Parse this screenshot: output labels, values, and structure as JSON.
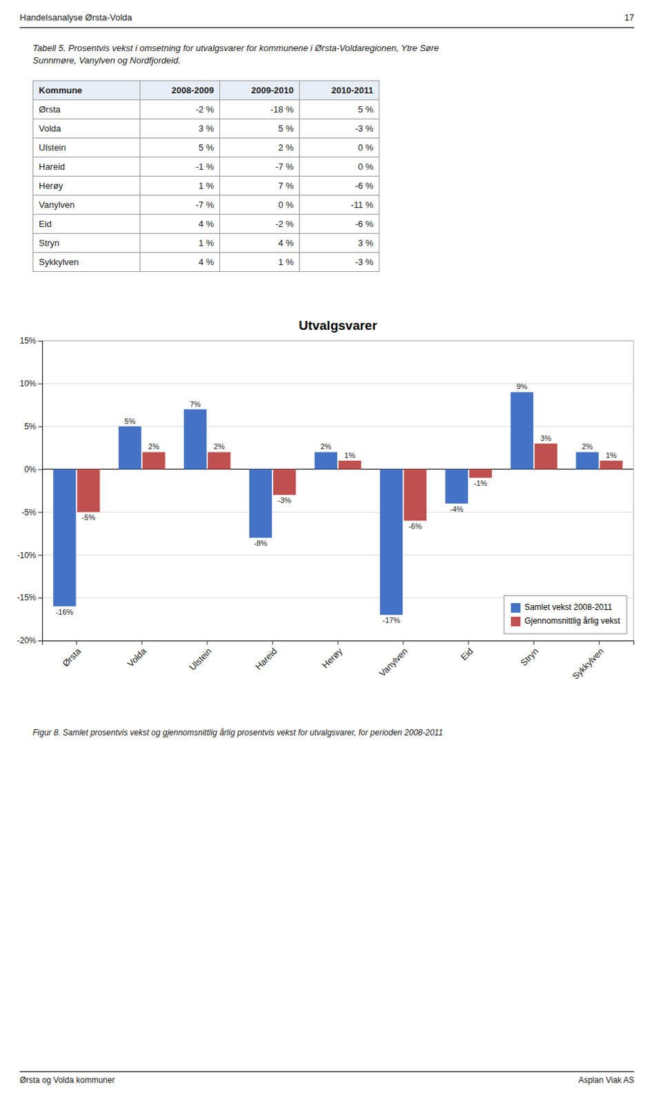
{
  "page_header": "Handelsanalyse Ørsta-Volda",
  "page_number": "17",
  "caption_table": "Tabell 5. Prosentvis vekst i omsetning for utvalgsvarer for kommunene i Ørsta-Voldaregionen, Ytre Søre\nSunnmøre, Vanylven og Nordfjordeid.",
  "table": {
    "headers": [
      "Kommune",
      "2008-2009",
      "2009-2010",
      "2010-2011"
    ],
    "rows": [
      [
        "Ørsta",
        "-2 %",
        "-18 %",
        "5 %"
      ],
      [
        "Volda",
        "3 %",
        "5 %",
        "-3 %"
      ],
      [
        "Ulstein",
        "5 %",
        "2 %",
        "0 %"
      ],
      [
        "Hareid",
        "-1 %",
        "-7 %",
        "0 %"
      ],
      [
        "Herøy",
        "1 %",
        "7 %",
        "-6 %"
      ],
      [
        "Vanylven",
        "-7 %",
        "0 %",
        "-11 %"
      ],
      [
        "Eid",
        "4 %",
        "-2 %",
        "-6 %"
      ],
      [
        "Stryn",
        "1 %",
        "4 %",
        "3 %"
      ],
      [
        "Sykkylven",
        "4 %",
        "1 %",
        "-3 %"
      ]
    ]
  },
  "chart_data": {
    "type": "bar",
    "title": "Utvalgsvarer",
    "categories": [
      "Ørsta",
      "Volda",
      "Ulstein",
      "Hareid",
      "Herøy",
      "Vanylven",
      "Eid",
      "Stryn",
      "Sykkylven"
    ],
    "series": [
      {
        "name": "Samlet vekst 2008-2011",
        "color": "#4472C4",
        "values": [
          -16,
          5,
          7,
          -8,
          2,
          -17,
          -4,
          9,
          2
        ],
        "value_labels": [
          "-16%",
          "5%",
          "7%",
          "-8%",
          "2%",
          "-17%",
          "-4%",
          "9%",
          "2%"
        ]
      },
      {
        "name": "Gjennomsnittlig årlig vekst",
        "color": "#C0504D",
        "values": [
          -5,
          2,
          2,
          -3,
          1,
          -6,
          -1,
          3,
          1
        ],
        "value_labels": [
          "-5%",
          "2%",
          "2%",
          "-3%",
          "1%",
          "-6%",
          "-1%",
          "3%",
          "1%"
        ]
      }
    ],
    "ylim": [
      -20,
      15
    ],
    "yticks": [
      {
        "value": -20,
        "label": "-20%"
      },
      {
        "value": -15,
        "label": "-15%"
      },
      {
        "value": -10,
        "label": "-10%"
      },
      {
        "value": -5,
        "label": "-5%"
      },
      {
        "value": 0,
        "label": "0%"
      },
      {
        "value": 5,
        "label": "5%"
      },
      {
        "value": 10,
        "label": "10%"
      },
      {
        "value": 15,
        "label": "15%"
      }
    ],
    "grid": true,
    "legend": "lower right",
    "data_labels": true
  },
  "caption_figure": "Figur 8. Samlet prosentvis vekst og gjennomsnittlig årlig prosentvis vekst for utvalgsvarer, for perioden 2008-2011",
  "footer_left": "Ørsta og Volda kommuner",
  "footer_right": "Asplan Viak AS"
}
